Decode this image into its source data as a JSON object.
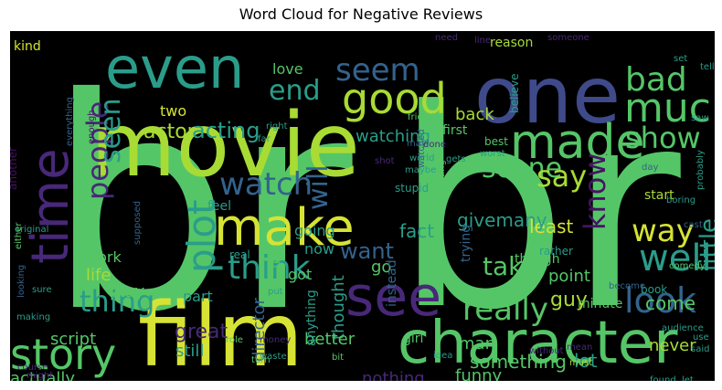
{
  "title": "Word Cloud for Negative Reviews",
  "background_color": "#000000",
  "palette": {
    "yellow": "#d6e334",
    "lime": "#a8db34",
    "green": "#55c667",
    "teal": "#2a9d8a",
    "cyan": "#22a884",
    "blue": "#33638d",
    "indigo": "#3f4a8a",
    "purple": "#482878",
    "violet": "#471365"
  },
  "words": [
    {
      "text": "br",
      "color": "green"
    },
    {
      "text": "br",
      "color": "green"
    },
    {
      "text": "movie",
      "color": "lime"
    },
    {
      "text": "film",
      "color": "yellow"
    },
    {
      "text": "one",
      "color": "indigo"
    },
    {
      "text": "even",
      "color": "teal"
    },
    {
      "text": "character",
      "color": "green"
    },
    {
      "text": "make",
      "color": "yellow"
    },
    {
      "text": "see",
      "color": "purple"
    },
    {
      "text": "made",
      "color": "green"
    },
    {
      "text": "time",
      "color": "purple"
    },
    {
      "text": "good",
      "color": "lime"
    },
    {
      "text": "story",
      "color": "green"
    },
    {
      "text": "much",
      "color": "green"
    },
    {
      "text": "bad",
      "color": "green"
    },
    {
      "text": "well",
      "color": "teal"
    },
    {
      "text": "plot",
      "color": "teal"
    },
    {
      "text": "watch",
      "color": "blue"
    },
    {
      "text": "look",
      "color": "blue"
    },
    {
      "text": "really",
      "color": "green"
    },
    {
      "text": "think",
      "color": "teal"
    },
    {
      "text": "way",
      "color": "yellow"
    },
    {
      "text": "scene",
      "color": "green"
    },
    {
      "text": "people",
      "color": "purple"
    },
    {
      "text": "seem",
      "color": "blue"
    },
    {
      "text": "seen",
      "color": "teal"
    },
    {
      "text": "show",
      "color": "green"
    },
    {
      "text": "say",
      "color": "lime"
    },
    {
      "text": "end",
      "color": "teal"
    },
    {
      "text": "know",
      "color": "violet"
    },
    {
      "text": "acting",
      "color": "teal"
    },
    {
      "text": "actor",
      "color": "lime"
    },
    {
      "text": "thing",
      "color": "teal"
    },
    {
      "text": "little",
      "color": "teal"
    },
    {
      "text": "take",
      "color": "green"
    },
    {
      "text": "want",
      "color": "blue"
    },
    {
      "text": "will",
      "color": "blue"
    },
    {
      "text": "watching",
      "color": "teal"
    },
    {
      "text": "two",
      "color": "yellow"
    },
    {
      "text": "love",
      "color": "green"
    },
    {
      "text": "kind",
      "color": "yellow"
    },
    {
      "text": "great",
      "color": "purple"
    },
    {
      "text": "script",
      "color": "green"
    },
    {
      "text": "thought",
      "color": "teal"
    },
    {
      "text": "director",
      "color": "blue"
    },
    {
      "text": "better",
      "color": "green"
    },
    {
      "text": "still",
      "color": "teal"
    },
    {
      "text": "man",
      "color": "green"
    },
    {
      "text": "guy",
      "color": "lime"
    },
    {
      "text": "funny",
      "color": "green"
    },
    {
      "text": "lot",
      "color": "teal"
    },
    {
      "text": "something",
      "color": "green"
    },
    {
      "text": "nothing",
      "color": "purple"
    },
    {
      "text": "actually",
      "color": "green"
    },
    {
      "text": "never",
      "color": "lime"
    },
    {
      "text": "come",
      "color": "green"
    },
    {
      "text": "point",
      "color": "green"
    },
    {
      "text": "least",
      "color": "yellow"
    },
    {
      "text": "givemany",
      "color": "teal"
    },
    {
      "text": "fact",
      "color": "teal"
    },
    {
      "text": "going",
      "color": "teal"
    },
    {
      "text": "go",
      "color": "green"
    },
    {
      "text": "part",
      "color": "teal"
    },
    {
      "text": "work",
      "color": "green"
    },
    {
      "text": "life",
      "color": "lime"
    },
    {
      "text": "play",
      "color": "green"
    },
    {
      "text": "feel",
      "color": "teal"
    },
    {
      "text": "find",
      "color": "green"
    },
    {
      "text": "got",
      "color": "green"
    },
    {
      "text": "now",
      "color": "teal"
    },
    {
      "text": "first",
      "color": "green"
    },
    {
      "text": "back",
      "color": "lime"
    },
    {
      "text": "reason",
      "color": "lime"
    },
    {
      "text": "believe",
      "color": "teal"
    },
    {
      "text": "start",
      "color": "lime"
    },
    {
      "text": "minute",
      "color": "green"
    },
    {
      "text": "book",
      "color": "teal"
    },
    {
      "text": "instead",
      "color": "blue"
    },
    {
      "text": "anything",
      "color": "teal"
    },
    {
      "text": "girl",
      "color": "green"
    },
    {
      "text": "trying",
      "color": "blue"
    },
    {
      "text": "though",
      "color": "green"
    },
    {
      "text": "real",
      "color": "teal"
    },
    {
      "text": "friend",
      "color": "green"
    },
    {
      "text": "best",
      "color": "green"
    },
    {
      "text": "worst",
      "color": "teal"
    },
    {
      "text": "boring",
      "color": "teal"
    },
    {
      "text": "comedy",
      "color": "green"
    },
    {
      "text": "cast",
      "color": "blue"
    },
    {
      "text": "rather",
      "color": "teal"
    },
    {
      "text": "interesting",
      "color": "green"
    },
    {
      "text": "stupid",
      "color": "teal"
    },
    {
      "text": "original",
      "color": "teal"
    },
    {
      "text": "everything",
      "color": "blue"
    },
    {
      "text": "another",
      "color": "violet"
    },
    {
      "text": "looking",
      "color": "blue"
    },
    {
      "text": "making",
      "color": "teal"
    },
    {
      "text": "waste",
      "color": "teal"
    },
    {
      "text": "sure",
      "color": "teal"
    },
    {
      "text": "role",
      "color": "green"
    },
    {
      "text": "money",
      "color": "purple"
    },
    {
      "text": "turn",
      "color": "green"
    },
    {
      "text": "bit",
      "color": "green"
    },
    {
      "text": "idea",
      "color": "teal"
    },
    {
      "text": "must",
      "color": "lime"
    },
    {
      "text": "found",
      "color": "teal"
    },
    {
      "text": "let",
      "color": "teal"
    },
    {
      "text": "said",
      "color": "teal"
    },
    {
      "text": "almost",
      "color": "teal"
    },
    {
      "text": "audience",
      "color": "teal"
    },
    {
      "text": "become",
      "color": "blue"
    },
    {
      "text": "right",
      "color": "teal"
    },
    {
      "text": "may",
      "color": "blue"
    },
    {
      "text": "world",
      "color": "teal"
    },
    {
      "text": "gets",
      "color": "teal"
    },
    {
      "text": "far",
      "color": "teal"
    },
    {
      "text": "shot",
      "color": "purple"
    },
    {
      "text": "need",
      "color": "purple"
    },
    {
      "text": "line",
      "color": "purple"
    },
    {
      "text": "someone",
      "color": "purple"
    },
    {
      "text": "set",
      "color": "teal"
    },
    {
      "text": "tell",
      "color": "teal"
    },
    {
      "text": "day",
      "color": "blue"
    },
    {
      "text": "done",
      "color": "purple"
    },
    {
      "text": "maybe",
      "color": "teal"
    },
    {
      "text": "enough",
      "color": "violet"
    },
    {
      "text": "watched",
      "color": "blue"
    },
    {
      "text": "use",
      "color": "teal"
    },
    {
      "text": "probably",
      "color": "teal"
    },
    {
      "text": "without",
      "color": "purple"
    },
    {
      "text": "course",
      "color": "purple"
    },
    {
      "text": "saw",
      "color": "teal"
    },
    {
      "text": "put",
      "color": "teal"
    },
    {
      "text": "might",
      "color": "purple"
    },
    {
      "text": "mean",
      "color": "purple"
    },
    {
      "text": "anyone",
      "color": "purple"
    },
    {
      "text": "supposed",
      "color": "blue"
    },
    {
      "text": "either",
      "color": "green"
    }
  ]
}
